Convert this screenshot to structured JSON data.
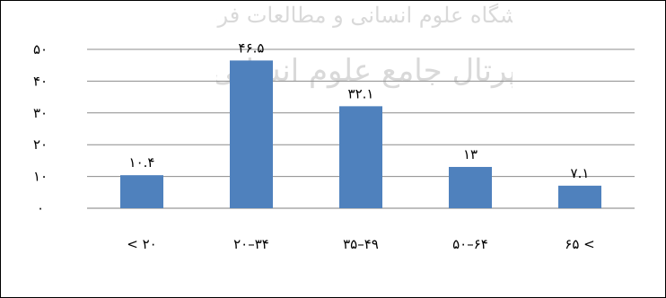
{
  "chart_data": {
    "type": "bar",
    "categories": [
      "< ۲۰",
      "۲۰–۳۴",
      "۳۵–۴۹",
      "۵۰–۶۴",
      "۶۵ <"
    ],
    "values": [
      10.4,
      46.5,
      32.1,
      13,
      7.1
    ],
    "value_labels": [
      "۱۰.۴",
      "۴۶.۵",
      "۳۲.۱",
      "۱۳",
      "۷.۱"
    ],
    "yticks": [
      0,
      10,
      20,
      30,
      40,
      50
    ],
    "ytick_labels": [
      "۰",
      "۱۰",
      "۲۰",
      "۳۰",
      "۴۰",
      "۵۰"
    ],
    "ylim": [
      0,
      50
    ],
    "grid": true,
    "bar_color": "#4f81bd",
    "title": "",
    "xlabel": "",
    "ylabel": ""
  }
}
